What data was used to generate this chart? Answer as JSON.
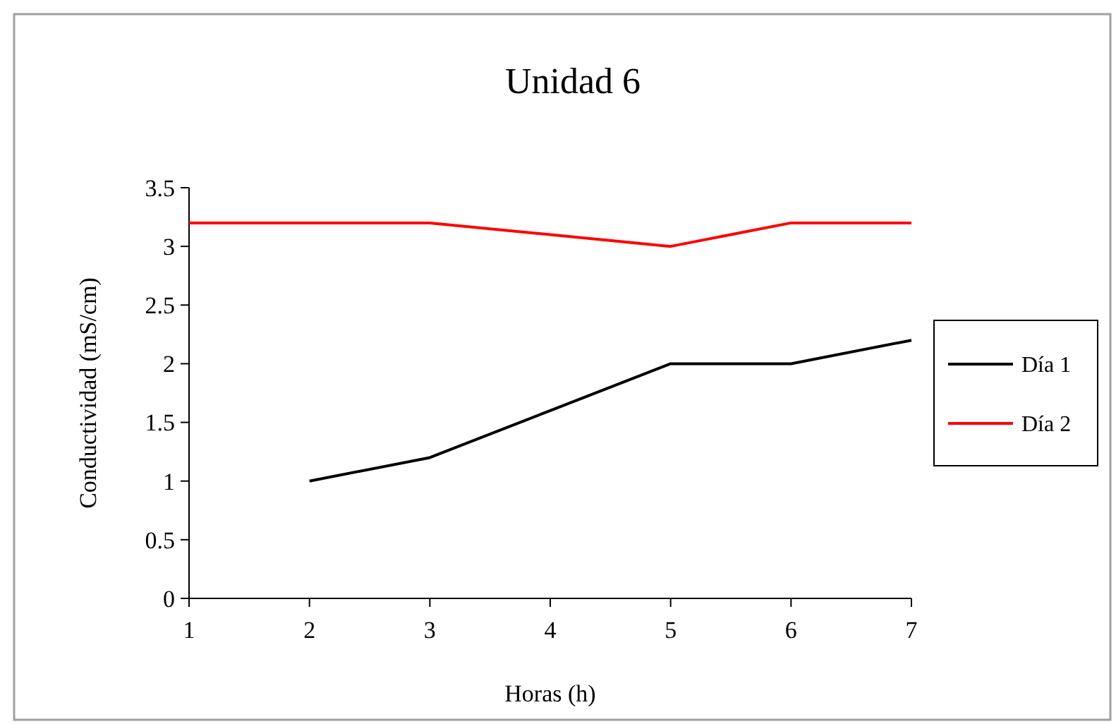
{
  "chart_data": {
    "type": "line",
    "title": "Unidad 6",
    "xlabel": "Horas (h)",
    "ylabel": "Conductividad (mS/cm)",
    "xlim": [
      1,
      7
    ],
    "xticks": [
      1,
      2,
      3,
      4,
      5,
      6,
      7
    ],
    "ylim": [
      0,
      3.5
    ],
    "yticks": [
      0,
      0.5,
      1,
      1.5,
      2,
      2.5,
      3,
      3.5
    ],
    "grid": false,
    "legend": "right",
    "marker": "none",
    "line_style": "solid",
    "series": [
      {
        "name": "Día 1",
        "color": "#000000",
        "x": [
          2,
          3,
          4,
          5,
          6,
          7
        ],
        "values": [
          1,
          1.2,
          1.6,
          2,
          2,
          2.2
        ]
      },
      {
        "name": "Día 2",
        "color": "#ff0000",
        "x": [
          1,
          2,
          3,
          4,
          5,
          6,
          7
        ],
        "values": [
          3.2,
          3.2,
          3.2,
          3.1,
          3,
          3.2,
          3.2
        ]
      }
    ]
  }
}
